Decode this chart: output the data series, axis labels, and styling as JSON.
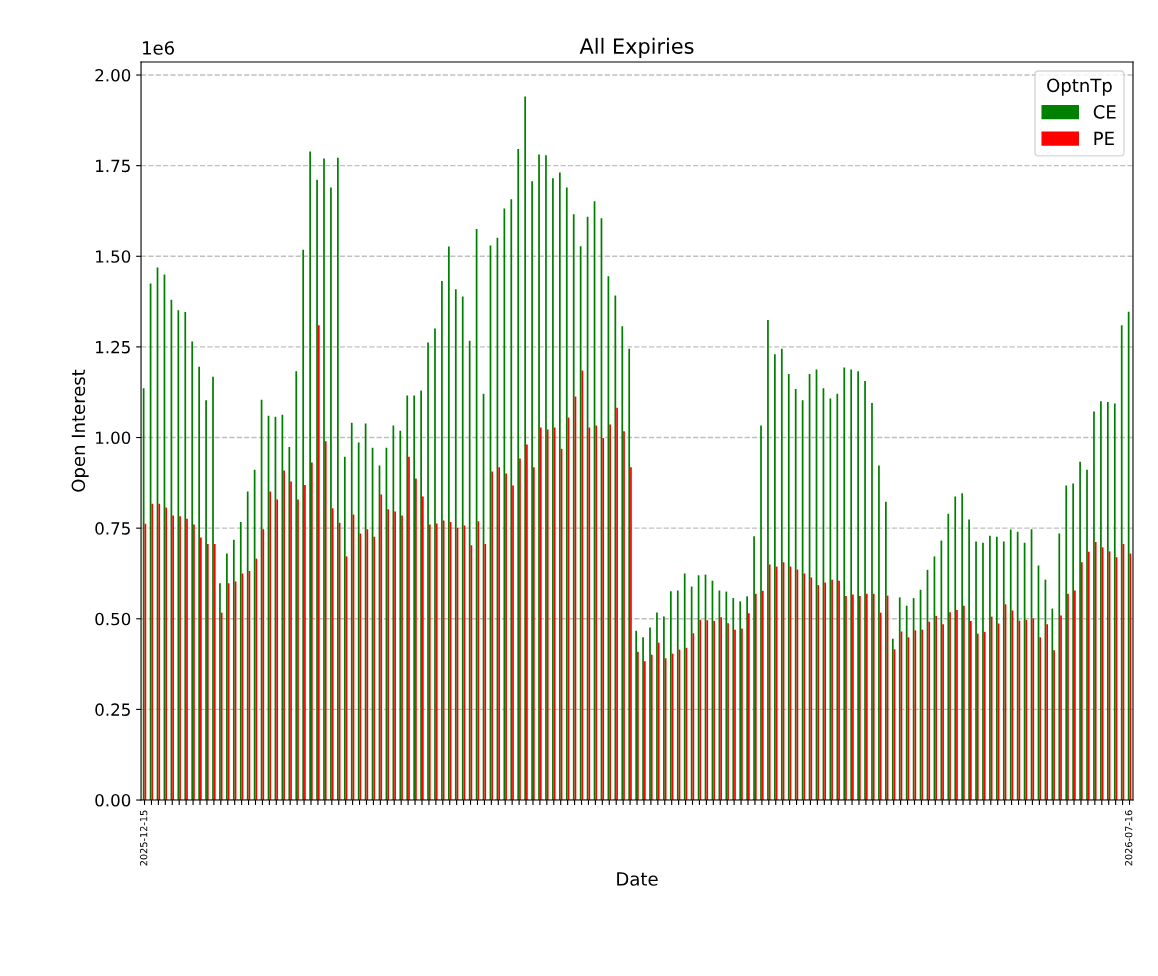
{
  "chart_data": {
    "type": "bar",
    "title": "All Expiries",
    "xlabel": "Date",
    "ylabel": "Open Interest",
    "legend_title": "OptnTp",
    "annotations": [
      "1e6"
    ],
    "categories": [
      "2025-12-15",
      null,
      null,
      null,
      null,
      null,
      null,
      null,
      null,
      null,
      null,
      null,
      null,
      null,
      null,
      null,
      null,
      null,
      null,
      null,
      null,
      null,
      null,
      null,
      null,
      null,
      null,
      null,
      null,
      null,
      null,
      null,
      null,
      null,
      null,
      null,
      null,
      null,
      null,
      null,
      null,
      null,
      null,
      null,
      null,
      null,
      null,
      null,
      null,
      null,
      null,
      null,
      null,
      null,
      null,
      null,
      null,
      null,
      null,
      null,
      null,
      null,
      null,
      null,
      null,
      null,
      null,
      null,
      null,
      null,
      null,
      null,
      null,
      null,
      null,
      null,
      null,
      null,
      null,
      null,
      null,
      null,
      null,
      null,
      null,
      null,
      null,
      null,
      null,
      null,
      null,
      null,
      null,
      null,
      null,
      null,
      null,
      null,
      null,
      null,
      null,
      null,
      null,
      null,
      null,
      null,
      null,
      null,
      null,
      null,
      null,
      null,
      null,
      null,
      null,
      null,
      null,
      null,
      null,
      null,
      null,
      null,
      null,
      null,
      null,
      null,
      null,
      null,
      null,
      null,
      null,
      null,
      null,
      null,
      null,
      null,
      null,
      null,
      null,
      null,
      null,
      null,
      "2026-07-16"
    ],
    "series": [
      {
        "name": "CE",
        "color": "#008000",
        "values": [
          1.136,
          1.425,
          1.469,
          1.45,
          1.38,
          1.351,
          1.346,
          1.265,
          1.195,
          1.103,
          1.168,
          0.598,
          0.68,
          0.718,
          0.767,
          0.851,
          0.911,
          1.104,
          1.06,
          1.057,
          1.063,
          0.974,
          1.183,
          1.518,
          1.789,
          1.711,
          1.77,
          1.69,
          1.772,
          0.947,
          1.041,
          0.986,
          1.039,
          0.972,
          0.923,
          0.972,
          1.033,
          1.019,
          1.116,
          1.116,
          1.13,
          1.262,
          1.301,
          1.432,
          1.527,
          1.409,
          1.389,
          1.267,
          1.575,
          1.121,
          1.53,
          1.551,
          1.632,
          1.657,
          1.796,
          1.941,
          1.707,
          1.781,
          1.779,
          1.715,
          1.731,
          1.69,
          1.616,
          1.528,
          1.609,
          1.652,
          1.605,
          1.445,
          1.392,
          1.307,
          1.245,
          0.467,
          0.449,
          0.476,
          0.517,
          0.506,
          0.576,
          0.578,
          0.625,
          0.589,
          0.62,
          0.622,
          0.605,
          0.578,
          0.575,
          0.557,
          0.548,
          0.562,
          0.728,
          1.033,
          1.324,
          1.23,
          1.245,
          1.175,
          1.134,
          1.103,
          1.175,
          1.188,
          1.136,
          1.108,
          1.121,
          1.193,
          1.188,
          1.183,
          1.156,
          1.095,
          0.923,
          0.823,
          0.445,
          0.559,
          0.536,
          0.557,
          0.58,
          0.635,
          0.672,
          0.716,
          0.79,
          0.837,
          0.846,
          0.774,
          0.713,
          0.71,
          0.729,
          0.726,
          0.713,
          0.746,
          0.74,
          0.71,
          0.747,
          0.647,
          0.608,
          0.528,
          0.735,
          0.868,
          0.873,
          0.933,
          0.911,
          1.072,
          1.1,
          1.098,
          1.094,
          1.31,
          1.347
        ]
      },
      {
        "name": "PE",
        "color": "#ff0000",
        "values": [
          0.762,
          0.817,
          0.817,
          0.807,
          0.785,
          0.783,
          0.776,
          0.76,
          0.724,
          0.706,
          0.706,
          0.517,
          0.598,
          0.603,
          0.625,
          0.632,
          0.666,
          0.747,
          0.851,
          0.829,
          0.909,
          0.879,
          0.829,
          0.869,
          0.931,
          1.31,
          0.99,
          0.805,
          0.765,
          0.672,
          0.788,
          0.735,
          0.747,
          0.726,
          0.843,
          0.802,
          0.796,
          0.785,
          0.947,
          0.887,
          0.837,
          0.76,
          0.763,
          0.771,
          0.767,
          0.751,
          0.757,
          0.703,
          0.769,
          0.706,
          0.906,
          0.918,
          0.901,
          0.868,
          0.942,
          0.981,
          0.918,
          1.028,
          1.022,
          1.028,
          0.969,
          1.055,
          1.113,
          1.185,
          1.028,
          1.033,
          0.999,
          1.036,
          1.082,
          1.017,
          0.918,
          0.409,
          0.383,
          0.401,
          0.434,
          0.391,
          0.404,
          0.415,
          0.42,
          0.46,
          0.497,
          0.496,
          0.494,
          0.504,
          0.488,
          0.47,
          0.473,
          0.515,
          0.569,
          0.577,
          0.65,
          0.644,
          0.656,
          0.644,
          0.636,
          0.625,
          0.614,
          0.593,
          0.6,
          0.608,
          0.605,
          0.563,
          0.567,
          0.563,
          0.569,
          0.569,
          0.517,
          0.564,
          0.416,
          0.465,
          0.449,
          0.468,
          0.47,
          0.492,
          0.508,
          0.485,
          0.518,
          0.524,
          0.536,
          0.494,
          0.459,
          0.464,
          0.506,
          0.487,
          0.54,
          0.523,
          0.495,
          0.497,
          0.501,
          0.449,
          0.485,
          0.413,
          0.509,
          0.569,
          0.578,
          0.656,
          0.685,
          0.712,
          0.697,
          0.686,
          0.67,
          0.706,
          0.68
        ]
      }
    ],
    "ylim": [
      0,
      2.036
    ],
    "yticks": [
      {
        "value": 0,
        "label": "0.00"
      },
      0.25,
      {
        "value": 0.5,
        "label": "0.50"
      },
      0.75,
      {
        "value": 1,
        "label": "1.00"
      },
      1.25,
      {
        "value": 1.5,
        "label": "1.50"
      },
      1.75,
      {
        "value": 2,
        "label": "2.00"
      }
    ],
    "grid": "y",
    "legend": "top right"
  }
}
